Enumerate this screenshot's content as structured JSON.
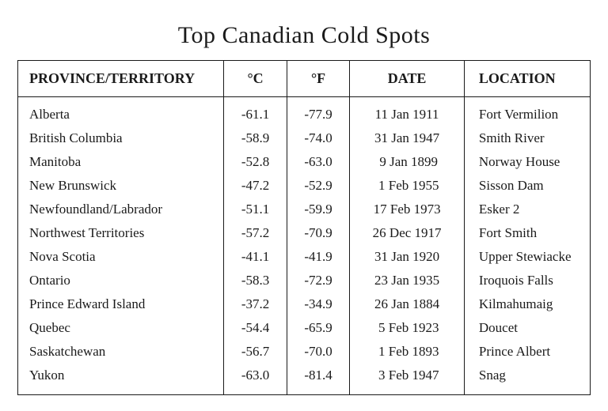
{
  "title": "Top Canadian Cold Spots",
  "table": {
    "type": "table",
    "background_color": "#ffffff",
    "border_color": "#1a1a1a",
    "text_color": "#1a1a1a",
    "title_fontsize": 30,
    "header_fontsize": 18,
    "cell_fontsize": 17,
    "columns": [
      {
        "key": "province",
        "label": "PROVINCE/TERRITORY",
        "align": "left",
        "width_pct": 36
      },
      {
        "key": "celsius",
        "label": "°C",
        "align": "center",
        "width_pct": 11
      },
      {
        "key": "fahrenheit",
        "label": "°F",
        "align": "center",
        "width_pct": 11
      },
      {
        "key": "date",
        "label": "DATE",
        "align": "center",
        "width_pct": 20
      },
      {
        "key": "location",
        "label": "LOCATION",
        "align": "left",
        "width_pct": 22
      }
    ],
    "rows": [
      {
        "province": "Alberta",
        "celsius": "-61.1",
        "fahrenheit": "-77.9",
        "date": "11 Jan 1911",
        "location": "Fort Vermilion"
      },
      {
        "province": "British Columbia",
        "celsius": "-58.9",
        "fahrenheit": "-74.0",
        "date": "31 Jan 1947",
        "location": "Smith River"
      },
      {
        "province": "Manitoba",
        "celsius": "-52.8",
        "fahrenheit": "-63.0",
        "date": " 9 Jan 1899",
        "location": "Norway House"
      },
      {
        "province": "New Brunswick",
        "celsius": "-47.2",
        "fahrenheit": "-52.9",
        "date": " 1 Feb 1955",
        "location": "Sisson Dam"
      },
      {
        "province": "Newfoundland/Labrador",
        "celsius": "-51.1",
        "fahrenheit": "-59.9",
        "date": "17 Feb 1973",
        "location": "Esker 2"
      },
      {
        "province": "Northwest Territories",
        "celsius": "-57.2",
        "fahrenheit": "-70.9",
        "date": "26 Dec 1917",
        "location": "Fort Smith"
      },
      {
        "province": "Nova Scotia",
        "celsius": "-41.1",
        "fahrenheit": "-41.9",
        "date": "31 Jan 1920",
        "location": "Upper Stewiacke"
      },
      {
        "province": "Ontario",
        "celsius": "-58.3",
        "fahrenheit": "-72.9",
        "date": "23 Jan 1935",
        "location": "Iroquois Falls"
      },
      {
        "province": "Prince Edward Island",
        "celsius": "-37.2",
        "fahrenheit": "-34.9",
        "date": "26 Jan 1884",
        "location": "Kilmahumaig"
      },
      {
        "province": "Quebec",
        "celsius": "-54.4",
        "fahrenheit": "-65.9",
        "date": " 5 Feb 1923",
        "location": "Doucet"
      },
      {
        "province": "Saskatchewan",
        "celsius": "-56.7",
        "fahrenheit": "-70.0",
        "date": " 1 Feb 1893",
        "location": "Prince Albert"
      },
      {
        "province": "Yukon",
        "celsius": "-63.0",
        "fahrenheit": "-81.4",
        "date": " 3 Feb 1947",
        "location": "Snag"
      }
    ]
  }
}
